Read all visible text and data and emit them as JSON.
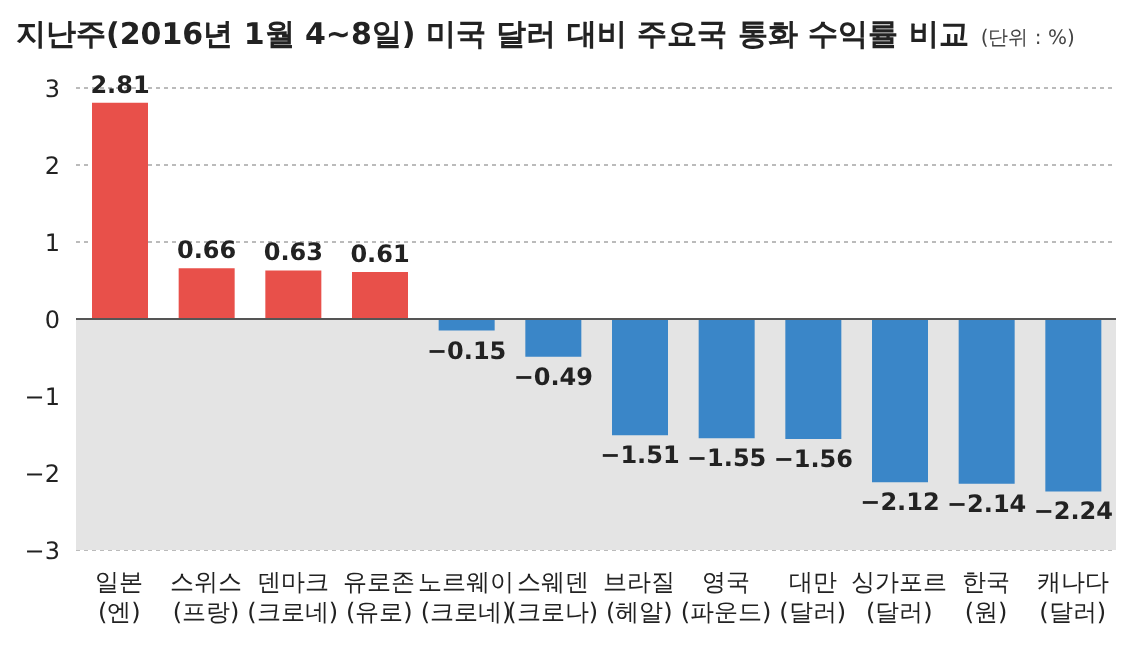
{
  "chart_data": {
    "type": "bar",
    "title": "지난주(2016년 1월 4~8일) 미국 달러 대비 주요국 통화 수익률 비교",
    "subtitle": "(단위 : %)",
    "categories": [
      "일본 (엔)",
      "스위스 (프랑)",
      "덴마크 (크로네)",
      "유로존 (유로)",
      "노르웨이 (크로네)",
      "스웨덴 (크로나)",
      "브라질 (헤알)",
      "영국 (파운드)",
      "대만 (달러)",
      "싱가포르 (달러)",
      "한국 (원)",
      "캐나다 (달러)"
    ],
    "values": [
      2.81,
      0.66,
      0.63,
      0.61,
      -0.15,
      -0.49,
      -1.51,
      -1.55,
      -1.56,
      -2.12,
      -2.14,
      -2.24
    ],
    "colors": [
      "#e8504a",
      "#e8504a",
      "#e8504a",
      "#e8504a",
      "#3a86c8",
      "#3a86c8",
      "#3a86c8",
      "#3a86c8",
      "#3a86c8",
      "#3a86c8",
      "#3a86c8",
      "#3a86c8"
    ],
    "ylim": [
      -3,
      3
    ],
    "yticks": [
      -3,
      -2,
      -1,
      0,
      1,
      2,
      3
    ],
    "grid": "y",
    "data_labels": true,
    "bands": [
      {
        "axis": "y",
        "from": -3,
        "to": 0,
        "color": "#e4e4e4"
      }
    ]
  }
}
